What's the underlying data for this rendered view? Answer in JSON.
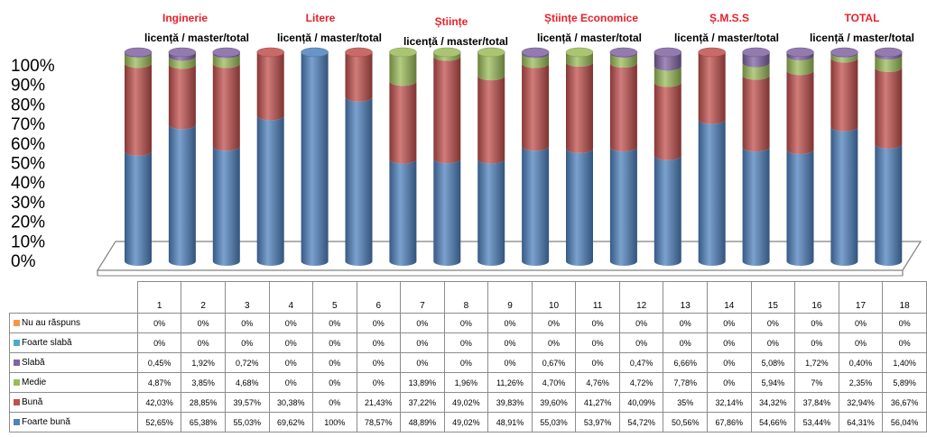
{
  "chart_data": {
    "type": "bar",
    "stacked": true,
    "three_d": true,
    "yaxis_ticks": [
      "100%",
      "90%",
      "80%",
      "70%",
      "60%",
      "50%",
      "40%",
      "30%",
      "20%",
      "10%",
      "0%"
    ],
    "ylim": [
      0,
      100
    ],
    "categories": [
      "1",
      "2",
      "3",
      "4",
      "5",
      "6",
      "7",
      "8",
      "9",
      "10",
      "11",
      "12",
      "13",
      "14",
      "15",
      "16",
      "17",
      "18"
    ],
    "groups": [
      {
        "title": "Inginerie",
        "subtitle": "licență / master/total"
      },
      {
        "title": "Litere",
        "subtitle": "licență / master/total"
      },
      {
        "title": "Științe",
        "subtitle": "licență / master/total"
      },
      {
        "title": "Științe Economice",
        "subtitle": "licență / master/total"
      },
      {
        "title": "Ș.M.S.S",
        "subtitle": "licență / master/total"
      },
      {
        "title": "TOTAL",
        "subtitle": "licență / master/total"
      }
    ],
    "series": [
      {
        "name": "Foarte bună",
        "color": "#4f81bd",
        "values": [
          52.65,
          65.38,
          55.03,
          69.62,
          100,
          78.57,
          48.89,
          49.02,
          48.91,
          55.03,
          53.97,
          54.72,
          50.56,
          67.86,
          54.66,
          53.44,
          64.31,
          56.04
        ],
        "labels": [
          "52,65%",
          "65,38%",
          "55,03%",
          "69,62%",
          "100%",
          "78,57%",
          "48,89%",
          "49,02%",
          "48,91%",
          "55,03%",
          "53,97%",
          "54,72%",
          "50,56%",
          "67,86%",
          "54,66%",
          "53,44%",
          "64,31%",
          "56,04%"
        ]
      },
      {
        "name": "Bună",
        "color": "#c0504d",
        "values": [
          42.03,
          28.85,
          39.57,
          30.38,
          0,
          21.43,
          37.22,
          49.02,
          39.83,
          39.6,
          41.27,
          40.09,
          35,
          32.14,
          34.32,
          37.84,
          32.94,
          36.67
        ],
        "labels": [
          "42,03%",
          "28,85%",
          "39,57%",
          "30,38%",
          "0%",
          "21,43%",
          "37,22%",
          "49,02%",
          "39,83%",
          "39,60%",
          "41,27%",
          "40,09%",
          "35%",
          "32,14%",
          "34,32%",
          "37,84%",
          "32,94%",
          "36,67%"
        ]
      },
      {
        "name": "Medie",
        "color": "#9bbb59",
        "values": [
          4.87,
          3.85,
          4.68,
          0,
          0,
          0,
          13.89,
          1.96,
          11.26,
          4.7,
          4.76,
          4.72,
          7.78,
          0,
          5.94,
          7,
          2.35,
          5.89
        ],
        "labels": [
          "4,87%",
          "3,85%",
          "4,68%",
          "0%",
          "0%",
          "0%",
          "13,89%",
          "1,96%",
          "11,26%",
          "4,70%",
          "4,76%",
          "4,72%",
          "7,78%",
          "0%",
          "5,94%",
          "7%",
          "2,35%",
          "5,89%"
        ]
      },
      {
        "name": "Slabă",
        "color": "#8064a2",
        "values": [
          0.45,
          1.92,
          0.72,
          0,
          0,
          0,
          0,
          0,
          0,
          0.67,
          0,
          0.47,
          6.66,
          0,
          5.08,
          1.72,
          0.4,
          1.4
        ],
        "labels": [
          "0,45%",
          "1,92%",
          "0,72%",
          "0%",
          "0%",
          "0%",
          "0%",
          "0%",
          "0%",
          "0,67%",
          "0%",
          "0,47%",
          "6,66%",
          "0%",
          "5,08%",
          "1,72%",
          "0,40%",
          "1,40%"
        ]
      },
      {
        "name": "Foarte slabă",
        "color": "#4bacc6",
        "values": [
          0,
          0,
          0,
          0,
          0,
          0,
          0,
          0,
          0,
          0,
          0,
          0,
          0,
          0,
          0,
          0,
          0,
          0
        ],
        "labels": [
          "0%",
          "0%",
          "0%",
          "0%",
          "0%",
          "0%",
          "0%",
          "0%",
          "0%",
          "0%",
          "0%",
          "0%",
          "0%",
          "0%",
          "0%",
          "0%",
          "0%",
          "0%"
        ]
      },
      {
        "name": "Nu au răspuns",
        "color": "#f79646",
        "values": [
          0,
          0,
          0,
          0,
          0,
          0,
          0,
          0,
          0,
          0,
          0,
          0,
          0,
          0,
          0,
          0,
          0,
          0
        ],
        "labels": [
          "0%",
          "0%",
          "0%",
          "0%",
          "0%",
          "0%",
          "0%",
          "0%",
          "0%",
          "0%",
          "0%",
          "0%",
          "0%",
          "0%",
          "0%",
          "0%",
          "0%",
          "0%"
        ]
      }
    ]
  }
}
